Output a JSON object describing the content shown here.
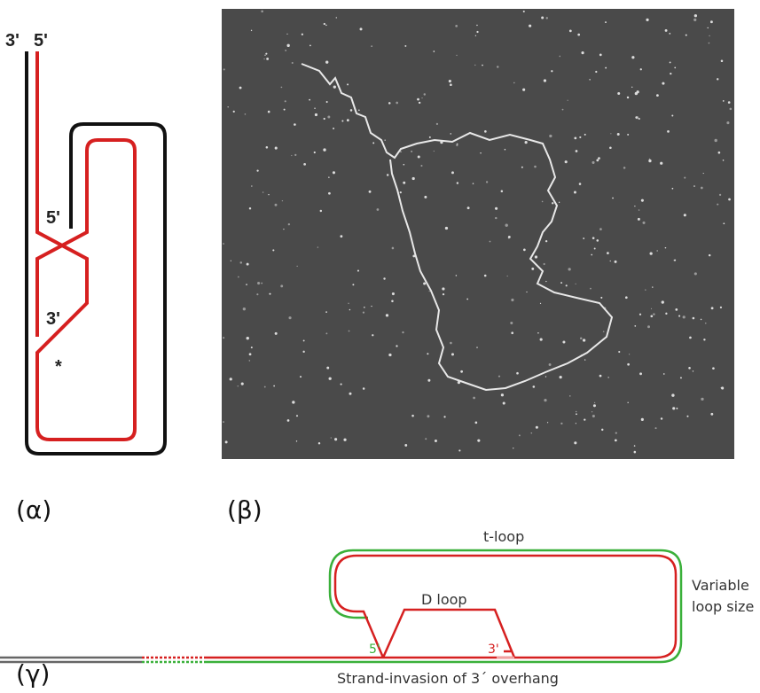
{
  "panel_alpha": {
    "label": "(α)",
    "strand_top_left": "3'",
    "strand_top_right": "5'",
    "inner_end": "5'",
    "invading_end": "3'",
    "marker": "*"
  },
  "panel_beta": {
    "label": "(β)"
  },
  "panel_gamma": {
    "label": "(γ)",
    "t_loop": "t-loop",
    "d_loop": "D loop",
    "loop_size_line1": "Variable",
    "loop_size_line2": "loop size",
    "end_5": "5'",
    "end_3": "3'",
    "caption": "Strand-invasion of 3´ overhang"
  }
}
